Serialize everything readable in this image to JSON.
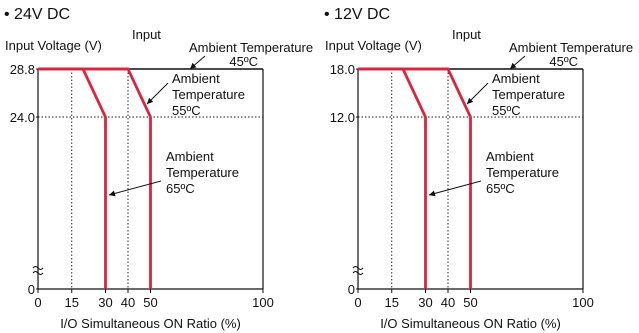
{
  "chart_data": [
    {
      "type": "line",
      "title": "• 24V DC",
      "ylabel": "Input Voltage (V)",
      "xlabel": "I/O Simultaneous ON Ratio (%)",
      "input_label": "Input",
      "xticks": [
        0,
        15,
        30,
        40,
        50,
        100
      ],
      "yticks": [
        0,
        24.0,
        28.8
      ],
      "ytick_labels": [
        "0",
        "24.0",
        "28.8"
      ],
      "xlim": [
        0,
        100
      ],
      "ylim": [
        0,
        28.8
      ],
      "series": [
        {
          "name": "Ambient Temperature 45ºC",
          "x": [
            0,
            100
          ],
          "y": [
            28.8,
            28.8
          ]
        },
        {
          "name": "Ambient Temperature 55ºC",
          "x": [
            0,
            40,
            50,
            50
          ],
          "y": [
            28.8,
            28.8,
            24.0,
            0
          ]
        },
        {
          "name": "Ambient Temperature 65ºC",
          "x": [
            0,
            20,
            30,
            30
          ],
          "y": [
            28.8,
            28.8,
            24.0,
            0
          ]
        }
      ],
      "annotations": [
        {
          "lines": [
            "Ambient Temperature",
            "45ºC"
          ]
        },
        {
          "lines": [
            "Ambient",
            "Temperature",
            "55ºC"
          ]
        },
        {
          "lines": [
            "Ambient",
            "Temperature",
            "65ºC"
          ]
        }
      ]
    },
    {
      "type": "line",
      "title": "• 12V DC",
      "ylabel": "Input Voltage (V)",
      "xlabel": "I/O Simultaneous ON Ratio (%)",
      "input_label": "Input",
      "xticks": [
        0,
        15,
        30,
        40,
        50,
        100
      ],
      "yticks": [
        0,
        12.0,
        18.0
      ],
      "ytick_labels": [
        "0",
        "12.0",
        "18.0"
      ],
      "xlim": [
        0,
        100
      ],
      "ylim": [
        0,
        18.0
      ],
      "series": [
        {
          "name": "Ambient Temperature 45ºC",
          "x": [
            0,
            100
          ],
          "y": [
            18.0,
            18.0
          ]
        },
        {
          "name": "Ambient Temperature 55ºC",
          "x": [
            0,
            40,
            50,
            50
          ],
          "y": [
            18.0,
            18.0,
            12.0,
            0
          ]
        },
        {
          "name": "Ambient Temperature 65ºC",
          "x": [
            0,
            20,
            30,
            30
          ],
          "y": [
            18.0,
            18.0,
            12.0,
            0
          ]
        }
      ],
      "annotations": [
        {
          "lines": [
            "Ambient Temperature",
            "45ºC"
          ]
        },
        {
          "lines": [
            "Ambient",
            "Temperature",
            "55ºC"
          ]
        },
        {
          "lines": [
            "Ambient",
            "Temperature",
            "65ºC"
          ]
        }
      ]
    }
  ],
  "colors": {
    "curve": "#d7263d",
    "axis": "#111111"
  }
}
